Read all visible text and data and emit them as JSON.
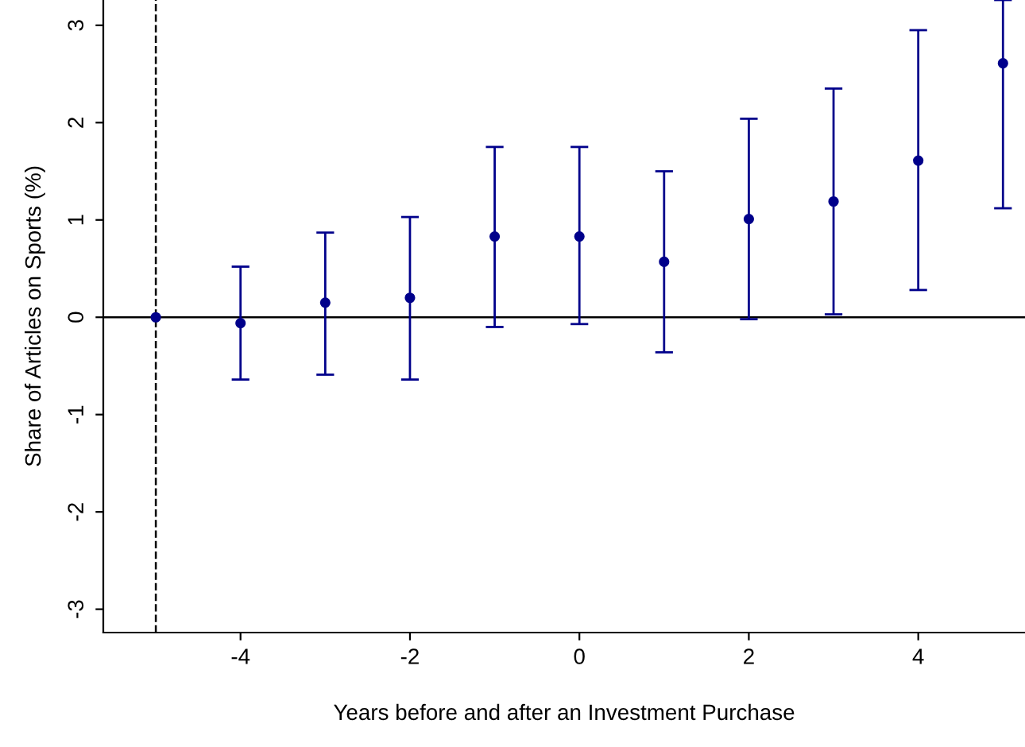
{
  "chart_data": {
    "type": "scatter",
    "xlabel": "Years before and after an Investment Purchase",
    "ylabel": "Share of Articles on Sports (%)",
    "x": [
      -5,
      -4,
      -3,
      -2,
      -1,
      0,
      1,
      2,
      3,
      4,
      5
    ],
    "values": [
      0,
      -0.06,
      0.15,
      0.2,
      0.83,
      0.83,
      0.57,
      1.01,
      1.19,
      1.61,
      2.61
    ],
    "errors": [
      null,
      [
        -0.64,
        0.52
      ],
      [
        -0.59,
        0.87
      ],
      [
        -0.64,
        1.03
      ],
      [
        -0.1,
        1.75
      ],
      [
        -0.07,
        1.75
      ],
      [
        -0.36,
        1.5
      ],
      [
        -0.02,
        2.04
      ],
      [
        0.03,
        2.35
      ],
      [
        0.28,
        2.95
      ],
      [
        1.12,
        3.26
      ]
    ],
    "color": "#00008b",
    "marker": "circle",
    "xlim": [
      -5.62,
      5.26
    ],
    "ylim": [
      -3.24,
      3.26
    ],
    "xticks": [
      -4,
      -2,
      0,
      2,
      4
    ],
    "yticks": [
      -3,
      -2,
      -1,
      0,
      1,
      2,
      3
    ],
    "ref_lines": [
      {
        "axis": "y",
        "value": 0,
        "color": "#000000",
        "line_style": "solid"
      },
      {
        "axis": "x",
        "value": -5,
        "color": "#000000",
        "line_style": "dashed"
      }
    ],
    "grid": false,
    "legend": false
  }
}
